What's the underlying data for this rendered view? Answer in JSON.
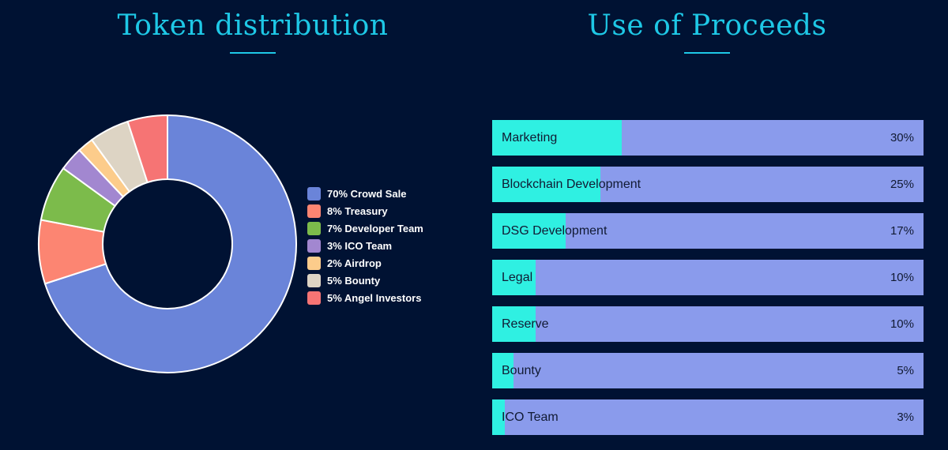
{
  "token_section": {
    "title": "Token distribution"
  },
  "proceeds_section": {
    "title": "Use of Proceeds"
  },
  "colors": {
    "background": "#001233",
    "accent": "#1ec8e6",
    "bar_fill": "#2ff0e2",
    "bar_track": "#8a9bec"
  },
  "chart_data": [
    {
      "type": "pie",
      "variant": "donut",
      "title": "Token distribution",
      "legend_position": "right",
      "slices": [
        {
          "label": "70% Crowd Sale",
          "name": "Crowd Sale",
          "value": 70,
          "color": "#6a84d9"
        },
        {
          "label": "8% Treasury",
          "name": "Treasury",
          "value": 8,
          "color": "#fc8572"
        },
        {
          "label": "7% Developer Team",
          "name": "Developer Team",
          "value": 7,
          "color": "#7cbb4b"
        },
        {
          "label": "3% ICO Team",
          "name": "ICO Team",
          "value": 3,
          "color": "#a287d0"
        },
        {
          "label": "2% Airdrop",
          "name": "Airdrop",
          "value": 2,
          "color": "#fccc8b"
        },
        {
          "label": "5% Bounty",
          "name": "Bounty",
          "value": 5,
          "color": "#ddd4c4"
        },
        {
          "label": "5% Angel Investors",
          "name": "Angel Investors",
          "value": 5,
          "color": "#f67474"
        }
      ]
    },
    {
      "type": "bar",
      "orientation": "horizontal",
      "title": "Use of Proceeds",
      "categories": [
        "Marketing",
        "Blockchain Development",
        "DSG Development",
        "Legal",
        "Reserve",
        "Bounty",
        "ICO Team"
      ],
      "values": [
        30,
        25,
        17,
        10,
        10,
        5,
        3
      ],
      "value_labels": [
        "30%",
        "25%",
        "17%",
        "10%",
        "10%",
        "5%",
        "3%"
      ],
      "xlim": [
        0,
        100
      ]
    }
  ]
}
